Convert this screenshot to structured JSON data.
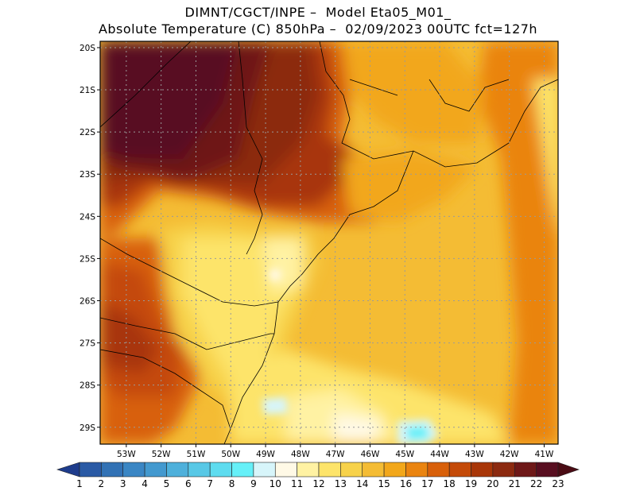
{
  "header": {
    "line1": "DIMNT/CGCT/INPE –  Model Eta05_M01_",
    "line2": "Absolute Temperature (C) 850hPa –  02/09/2023 00UTC fct=127h"
  },
  "map": {
    "lat_labels": [
      "20S",
      "21S",
      "22S",
      "23S",
      "24S",
      "25S",
      "26S",
      "27S",
      "28S",
      "29S"
    ],
    "lon_labels": [
      "53W",
      "52W",
      "51W",
      "50W",
      "49W",
      "48W",
      "47W",
      "46W",
      "45W",
      "44W",
      "43W",
      "42W",
      "41W"
    ],
    "lat_range": [
      -29.4,
      -19.85
    ],
    "lon_range": [
      -53.75,
      -40.6
    ],
    "grid": true
  },
  "colorbar": {
    "labels": [
      "1",
      "2",
      "3",
      "4",
      "5",
      "6",
      "7",
      "8",
      "9",
      "10",
      "11",
      "12",
      "13",
      "14",
      "15",
      "16",
      "17",
      "18",
      "19",
      "20",
      "21",
      "22",
      "23"
    ],
    "colors": [
      "#1e3c8c",
      "#2a5aa5",
      "#3272b5",
      "#3a86c4",
      "#4399cf",
      "#4eb0db",
      "#58c8e6",
      "#5edcef",
      "#66f0f8",
      "#d7f5fa",
      "#fff9e6",
      "#fff2a3",
      "#fde46a",
      "#f7d24a",
      "#f4bc34",
      "#f2a71a",
      "#ea8410",
      "#d8600a",
      "#c44a08",
      "#a83608",
      "#8c2a10",
      "#6e1818",
      "#580e20",
      "#4a0b14"
    ]
  }
}
